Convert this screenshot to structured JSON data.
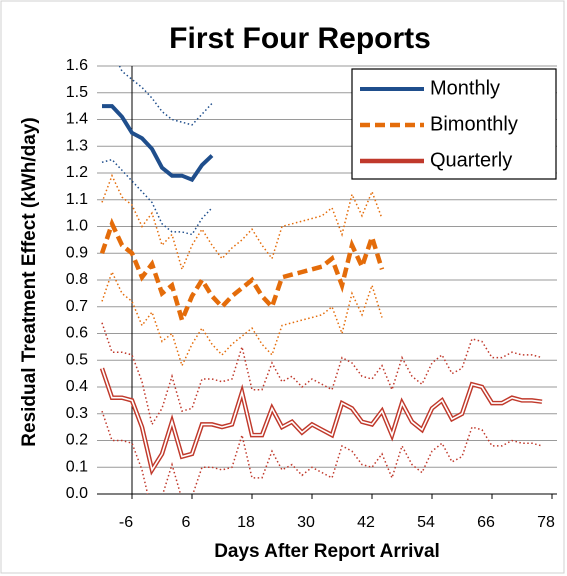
{
  "chart_data": {
    "type": "line",
    "title": "First Four Reports",
    "x_label": "Days After Report Arrival",
    "y_label": "Residual Treatment Effect (kWh/day)",
    "xlim": [
      -13,
      79
    ],
    "xticks": [
      -6,
      6,
      18,
      30,
      42,
      54,
      66,
      78
    ],
    "ylim": [
      0,
      1.6
    ],
    "yticks": [
      {
        "value": 0,
        "label": "0.0"
      },
      {
        "value": 0.1,
        "label": "0.1"
      },
      {
        "value": 0.2,
        "label": "0.2"
      },
      {
        "value": 0.3,
        "label": "0.3"
      },
      {
        "value": 0.4,
        "label": "0.4"
      },
      {
        "value": 0.5,
        "label": "0.5"
      },
      {
        "value": 0.6,
        "label": "0.6"
      },
      {
        "value": 0.7,
        "label": "0.7"
      },
      {
        "value": 0.8,
        "label": "0.8"
      },
      {
        "value": 0.9,
        "label": "0.9"
      },
      {
        "value": 1,
        "label": "1.0"
      },
      {
        "value": 1.1,
        "label": "1.1"
      },
      {
        "value": 1.2,
        "label": "1.2"
      },
      {
        "value": 1.3,
        "label": "1.3"
      },
      {
        "value": 1.4,
        "label": "1.4"
      },
      {
        "value": 1.5,
        "label": "1.5"
      },
      {
        "value": 1.6,
        "label": "1.6"
      }
    ],
    "grid": true,
    "legend": "upper right",
    "series": [
      {
        "name": "Monthly",
        "color": "#1f4e8c",
        "style": "solid",
        "x": [
          -12,
          -10,
          -8,
          -6,
          -4,
          -2,
          0,
          2,
          4,
          6,
          8,
          10
        ],
        "values": [
          1.45,
          1.45,
          1.41,
          1.35,
          1.33,
          1.29,
          1.22,
          1.19,
          1.19,
          1.175,
          1.23,
          1.265
        ],
        "upper": [
          1.67,
          1.66,
          1.58,
          1.55,
          1.52,
          1.48,
          1.43,
          1.4,
          1.39,
          1.38,
          1.42,
          1.46
        ],
        "lower": [
          1.24,
          1.25,
          1.21,
          1.17,
          1.13,
          1.09,
          1.01,
          0.98,
          0.98,
          0.97,
          1.03,
          1.07
        ]
      },
      {
        "name": "Bimonthly",
        "color": "#e46c0a",
        "style": "dashed",
        "x": [
          -12,
          -10,
          -8,
          -6,
          -4,
          -2,
          0,
          2,
          4,
          6,
          8,
          10,
          12,
          14,
          16,
          18,
          20,
          22,
          24,
          26,
          28,
          30,
          32,
          34,
          36,
          38,
          40,
          42,
          44
        ],
        "values": [
          0.9,
          1.01,
          0.93,
          0.9,
          0.81,
          0.86,
          0.75,
          0.78,
          0.65,
          0.74,
          0.8,
          0.74,
          0.7,
          0.74,
          0.77,
          0.8,
          0.74,
          0.7,
          0.81,
          0.82,
          0.83,
          0.84,
          0.85,
          0.88,
          0.78,
          0.93,
          0.85,
          0.96,
          0.84
        ],
        "upper": [
          1.09,
          1.19,
          1.11,
          1.08,
          1.0,
          1.05,
          0.93,
          0.97,
          0.84,
          0.93,
          0.99,
          0.93,
          0.88,
          0.92,
          0.95,
          0.99,
          0.93,
          0.88,
          1.0,
          1.01,
          1.02,
          1.03,
          1.04,
          1.07,
          0.97,
          1.12,
          1.04,
          1.13,
          1.03
        ],
        "lower": [
          0.72,
          0.83,
          0.75,
          0.72,
          0.63,
          0.68,
          0.57,
          0.6,
          0.48,
          0.56,
          0.62,
          0.56,
          0.52,
          0.56,
          0.59,
          0.62,
          0.56,
          0.52,
          0.63,
          0.64,
          0.65,
          0.66,
          0.67,
          0.7,
          0.6,
          0.75,
          0.67,
          0.78,
          0.66
        ]
      },
      {
        "name": "Quarterly",
        "color": "#c0392b",
        "style": "double",
        "x": [
          -12,
          -10,
          -8,
          -6,
          -4,
          -2,
          0,
          2,
          4,
          6,
          8,
          10,
          12,
          14,
          16,
          18,
          20,
          22,
          24,
          26,
          28,
          30,
          32,
          34,
          36,
          38,
          40,
          42,
          44,
          46,
          48,
          50,
          52,
          54,
          56,
          58,
          60,
          62,
          64,
          66,
          68,
          70,
          72,
          74,
          76
        ],
        "values": [
          0.47,
          0.36,
          0.36,
          0.35,
          0.25,
          0.09,
          0.15,
          0.27,
          0.14,
          0.15,
          0.26,
          0.26,
          0.25,
          0.26,
          0.38,
          0.22,
          0.22,
          0.32,
          0.25,
          0.27,
          0.23,
          0.26,
          0.24,
          0.22,
          0.34,
          0.32,
          0.27,
          0.26,
          0.31,
          0.22,
          0.34,
          0.27,
          0.24,
          0.32,
          0.35,
          0.28,
          0.3,
          0.41,
          0.4,
          0.34,
          0.34,
          0.36,
          0.35,
          0.35,
          0.345
        ],
        "upper": [
          0.64,
          0.53,
          0.53,
          0.52,
          0.42,
          0.26,
          0.32,
          0.44,
          0.31,
          0.32,
          0.43,
          0.43,
          0.42,
          0.43,
          0.55,
          0.39,
          0.39,
          0.49,
          0.42,
          0.44,
          0.4,
          0.43,
          0.41,
          0.39,
          0.51,
          0.49,
          0.44,
          0.43,
          0.48,
          0.39,
          0.51,
          0.44,
          0.41,
          0.49,
          0.52,
          0.45,
          0.47,
          0.58,
          0.57,
          0.51,
          0.51,
          0.53,
          0.52,
          0.52,
          0.51
        ],
        "lower": [
          0.31,
          0.2,
          0.2,
          0.19,
          0.09,
          -0.07,
          -0.01,
          0.11,
          -0.02,
          -0.01,
          0.1,
          0.1,
          0.09,
          0.1,
          0.22,
          0.06,
          0.06,
          0.16,
          0.09,
          0.11,
          0.07,
          0.1,
          0.08,
          0.06,
          0.18,
          0.16,
          0.11,
          0.1,
          0.15,
          0.06,
          0.18,
          0.11,
          0.08,
          0.16,
          0.19,
          0.12,
          0.14,
          0.25,
          0.24,
          0.18,
          0.18,
          0.2,
          0.19,
          0.19,
          0.18
        ]
      }
    ]
  }
}
